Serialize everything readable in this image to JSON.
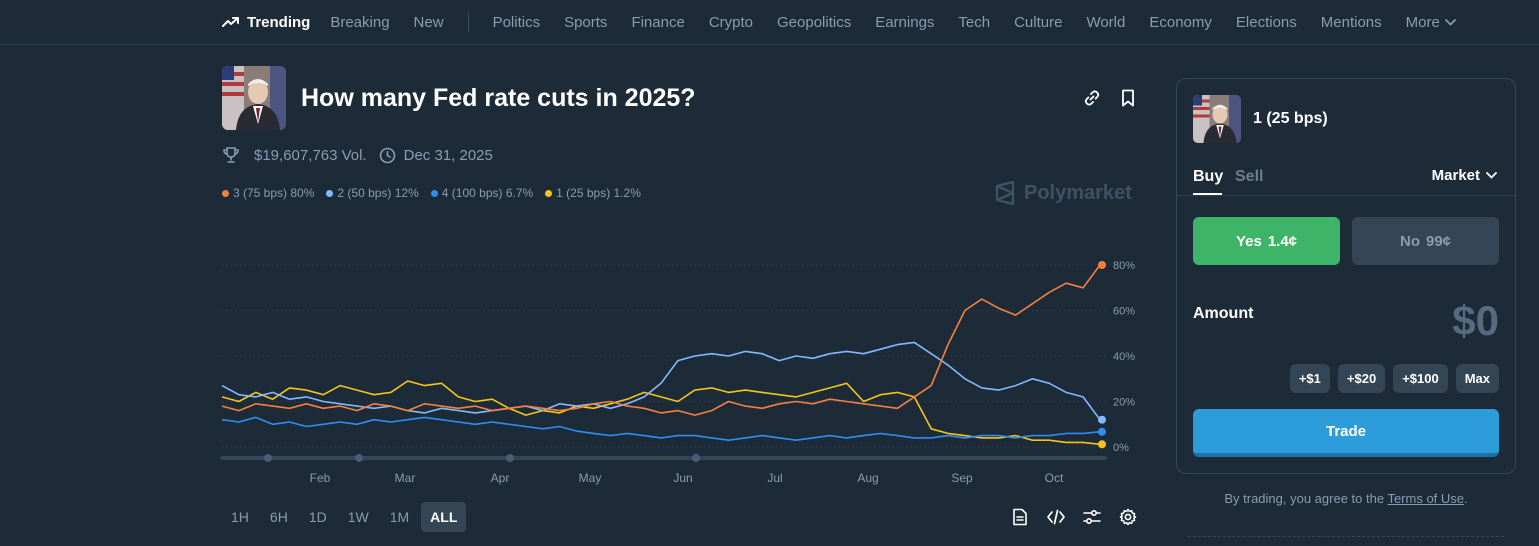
{
  "nav": {
    "trending": "Trending",
    "items": [
      "Breaking",
      "New"
    ],
    "categories": [
      "Politics",
      "Sports",
      "Finance",
      "Crypto",
      "Geopolitics",
      "Earnings",
      "Tech",
      "Culture",
      "World",
      "Economy",
      "Elections",
      "Mentions"
    ],
    "more": "More"
  },
  "market": {
    "title": "How many Fed rate cuts in 2025?",
    "volume": "$19,607,763 Vol.",
    "end_date": "Dec 31, 2025",
    "watermark": "Polymarket"
  },
  "legend": [
    {
      "label": "3 (75 bps) 80%",
      "color": "#f5803e"
    },
    {
      "label": "2 (50 bps) 12%",
      "color": "#84b8ff"
    },
    {
      "label": "4 (100 bps) 6.7%",
      "color": "#2e8ff0"
    },
    {
      "label": "1 (25 bps) 1.2%",
      "color": "#f5c518"
    }
  ],
  "chart_data": {
    "type": "line",
    "x_ticks": [
      "Feb",
      "Mar",
      "Apr",
      "May",
      "Jun",
      "Jul",
      "Aug",
      "Sep",
      "Oct"
    ],
    "y_ticks": [
      "80%",
      "60%",
      "40%",
      "20%",
      "0%"
    ],
    "ylim": [
      0,
      80
    ],
    "grid": true,
    "legend_position": "top-left",
    "series": [
      {
        "name": "3 (75 bps)",
        "color": "#f5803e",
        "values": [
          18,
          16,
          19,
          18,
          17,
          19,
          17,
          18,
          16,
          19,
          18,
          16,
          19,
          18,
          17,
          18,
          16,
          17,
          18,
          17,
          16,
          17,
          19,
          20,
          18,
          17,
          15,
          16,
          14,
          16,
          20,
          18,
          17,
          19,
          20,
          19,
          21,
          20,
          19,
          18,
          17,
          22,
          27,
          45,
          60,
          65,
          61,
          58,
          63,
          68,
          72,
          70,
          80
        ]
      },
      {
        "name": "2 (50 bps)",
        "color": "#84b8ff",
        "values": [
          27,
          23,
          22,
          24,
          21,
          22,
          20,
          19,
          18,
          17,
          18,
          16,
          15,
          17,
          16,
          15,
          16,
          17,
          18,
          16,
          19,
          18,
          19,
          17,
          19,
          22,
          28,
          38,
          40,
          41,
          40,
          42,
          41,
          38,
          40,
          39,
          41,
          42,
          41,
          43,
          45,
          46,
          41,
          36,
          30,
          26,
          25,
          27,
          30,
          28,
          24,
          22,
          12
        ]
      },
      {
        "name": "4 (100 bps)",
        "color": "#2e8ff0",
        "values": [
          12,
          11,
          13,
          10,
          11,
          9,
          10,
          11,
          10,
          12,
          11,
          12,
          13,
          12,
          11,
          10,
          11,
          10,
          9,
          8,
          9,
          7,
          6,
          5,
          6,
          5,
          4,
          5,
          5,
          4,
          3,
          4,
          5,
          4,
          3,
          4,
          5,
          4,
          5,
          6,
          5,
          4,
          4,
          5,
          4,
          5,
          5,
          4,
          5,
          5,
          6,
          6,
          6.7
        ]
      },
      {
        "name": "1 (25 bps)",
        "color": "#f5c518",
        "values": [
          22,
          20,
          24,
          21,
          26,
          25,
          23,
          27,
          25,
          23,
          24,
          29,
          27,
          28,
          22,
          20,
          21,
          17,
          14,
          16,
          15,
          18,
          17,
          19,
          21,
          24,
          22,
          20,
          25,
          26,
          24,
          25,
          24,
          23,
          22,
          24,
          26,
          28,
          20,
          23,
          24,
          22,
          8,
          6,
          5,
          4,
          4,
          5,
          3,
          3,
          2,
          2,
          1.2
        ]
      }
    ]
  },
  "time_buttons": [
    "1H",
    "6H",
    "1D",
    "1W",
    "1M",
    "ALL"
  ],
  "panel": {
    "outcome": "1 (25 bps)",
    "tab_buy": "Buy",
    "tab_sell": "Sell",
    "order_type": "Market",
    "yes_label": "Yes",
    "yes_price": "1.4¢",
    "no_label": "No",
    "no_price": "99¢",
    "amount_label": "Amount",
    "amount_value": "$0",
    "quick_amounts": [
      "+$1",
      "+$20",
      "+$100",
      "Max"
    ],
    "trade_label": "Trade"
  },
  "terms": {
    "prefix": "By trading, you agree to the",
    "link": "Terms of Use",
    "suffix": "."
  }
}
